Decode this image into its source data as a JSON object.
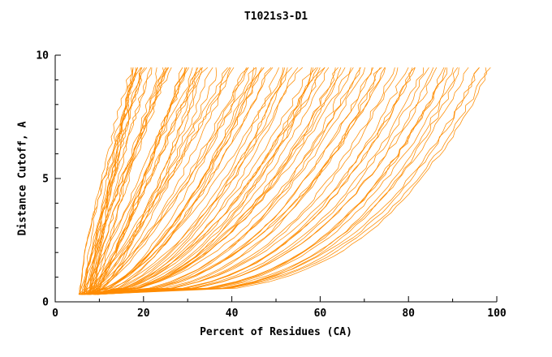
{
  "chart_data": {
    "type": "line",
    "title": "T1021s3-D1",
    "xlabel": "Percent of Residues (CA)",
    "ylabel": "Distance Cutoff, A",
    "xlim": [
      0,
      100
    ],
    "ylim": [
      0,
      10
    ],
    "x_ticks": [
      0,
      20,
      40,
      60,
      80,
      100
    ],
    "x_minor_step": 10,
    "y_ticks": [
      0,
      5,
      10
    ],
    "y_minor_step": 1,
    "grid": false,
    "legend": "none",
    "axis_color": "#000000",
    "line_color": "#ff8c00",
    "curves": {
      "description": "Bundle of ~100 per-model cumulative curves: each rises monotonically from about (5%, 0.3 A) to the top cutoff y=9.5 A, reaching the top at x values spread between ~18% and ~98%; dense steep bundle near x=10-20 and a shallow dense mass along the bottom spreading right to ~65% below y=1.5.",
      "count": 100,
      "seed": 11,
      "y_bottom": 0.3,
      "y_top": 9.5,
      "x_start_min": 4,
      "x_start_max": 11,
      "x_end_min": 18,
      "x_end_max": 98,
      "shape_min": 0.8,
      "shape_max": 3.6,
      "skew": 1.3,
      "jitter": 1.1,
      "stroke_width": 0.75
    }
  }
}
